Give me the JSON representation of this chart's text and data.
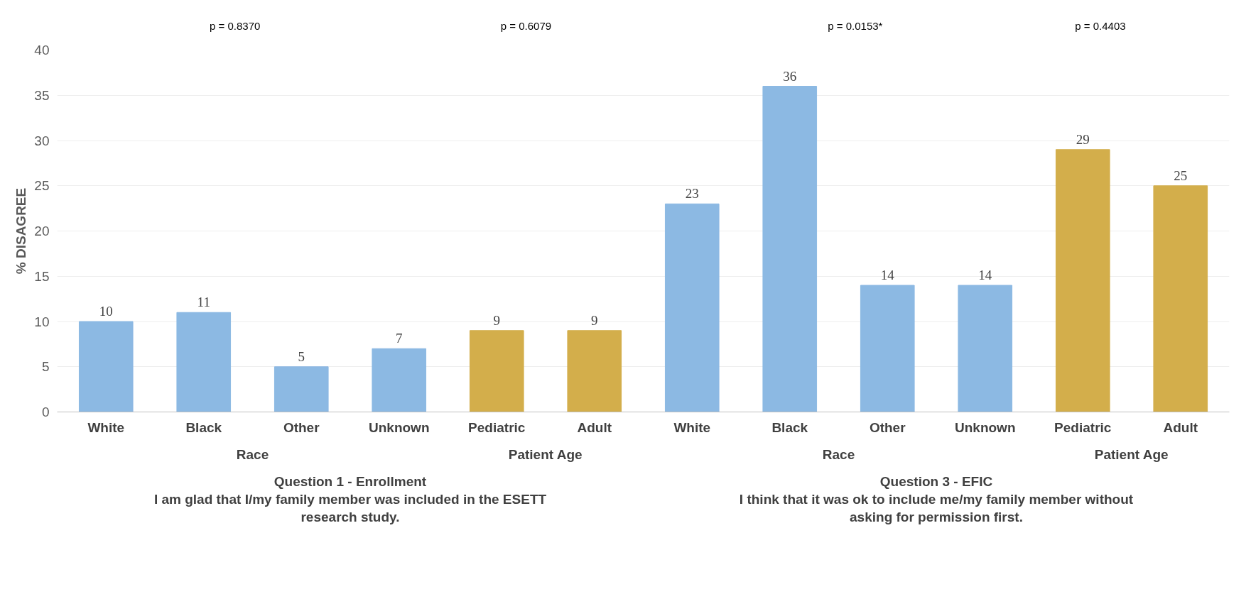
{
  "chart_data": {
    "type": "bar",
    "ylabel": "% DISAGREE",
    "categories": [
      "White",
      "Black",
      "Other",
      "Unknown",
      "Pediatric",
      "Adult",
      "White",
      "Black",
      "Other",
      "Unknown",
      "Pediatric",
      "Adult"
    ],
    "values": [
      10,
      11,
      5,
      7,
      9,
      9,
      23,
      36,
      14,
      14,
      29,
      25
    ],
    "colors": [
      "#8cb9e3",
      "#8cb9e3",
      "#8cb9e3",
      "#8cb9e3",
      "#d3ae4b",
      "#d3ae4b",
      "#8cb9e3",
      "#8cb9e3",
      "#8cb9e3",
      "#8cb9e3",
      "#d3ae4b",
      "#d3ae4b"
    ],
    "ylim": [
      0,
      40
    ],
    "yticks": [
      0,
      5,
      10,
      15,
      20,
      25,
      30,
      35,
      40
    ],
    "grid": "y",
    "data_labels": true,
    "annotations": [
      "p = 0.8370",
      "p = 0.6079",
      "p = 0.0153*",
      "p = 0.4403",
      "Race",
      "Patient Age",
      "Race",
      "Patient Age",
      "Question 1 - Enrollment\nI am glad that I/my family member was included in the ESETT\nresearch study.",
      "Question 3 - EFIC\nI think that it was ok to include me/my family member without\nasking for permission first."
    ]
  }
}
